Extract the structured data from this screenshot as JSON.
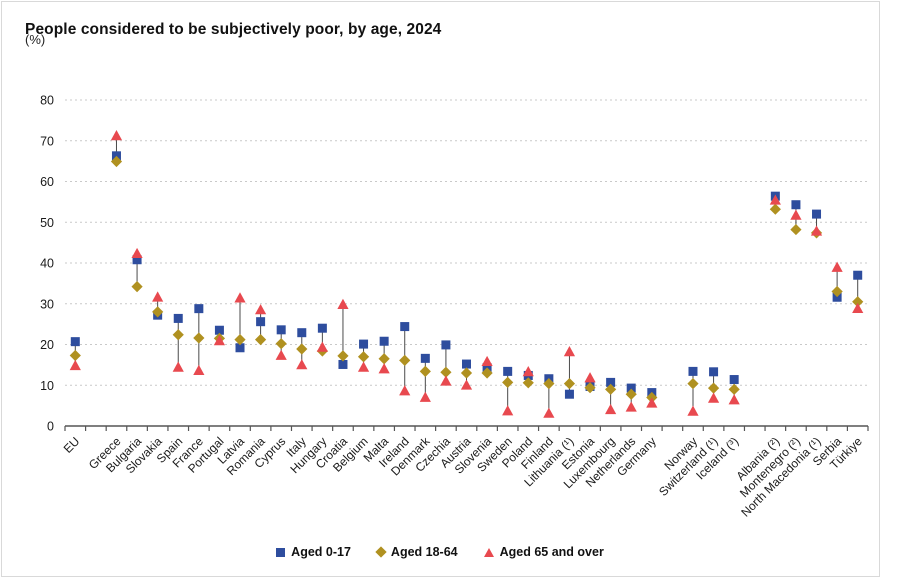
{
  "chart_data": {
    "type": "scatter",
    "title": "People considered to be subjectively poor, by age, 2024",
    "unit_label": "(%)",
    "xlabel": "",
    "ylabel": "%",
    "ylim": [
      0,
      80
    ],
    "yticks": [
      0,
      10,
      20,
      30,
      40,
      50,
      60,
      70,
      80
    ],
    "grid": true,
    "grid_style": "dashed",
    "legend_position": "bottom",
    "marker_link_lines": true,
    "colors": {
      "grid": "#c9c9c9",
      "axis": "#555555",
      "range_line": "#4a4a4a",
      "text": "#1a1a1a"
    },
    "categories": [
      "EU",
      "",
      "Greece",
      "Bulgaria",
      "Slovakia",
      "Spain",
      "France",
      "Portugal",
      "Latvia",
      "Romania",
      "Cyprus",
      "Italy",
      "Hungary",
      "Croatia",
      "Belgium",
      "Malta",
      "Ireland",
      "Denmark",
      "Czechia",
      "Austria",
      "Slovenia",
      "Sweden",
      "Poland",
      "Finland",
      "Lithuania (¹)",
      "Estonia",
      "Luxembourg",
      "Netherlands",
      "Germany",
      "",
      "Norway",
      "Switzerland (¹)",
      "Iceland (³)",
      "",
      "Albania (²)",
      "Montenegro (²)",
      "North Macedonia (¹)",
      "Serbia",
      "Türkiye"
    ],
    "series": [
      {
        "name": "Aged 0-17",
        "marker": "square",
        "color": "#2e4d9e",
        "values": [
          20.7,
          null,
          66.3,
          40.8,
          27.2,
          26.4,
          28.8,
          23.5,
          19.2,
          25.6,
          23.6,
          22.9,
          24.0,
          15.1,
          20.1,
          20.8,
          24.4,
          16.6,
          19.9,
          15.2,
          14.3,
          13.4,
          12.4,
          11.6,
          7.8,
          9.7,
          10.7,
          9.3,
          8.2,
          null,
          13.4,
          13.3,
          11.4,
          null,
          56.4,
          54.3,
          52.0,
          31.6,
          37.0
        ]
      },
      {
        "name": "Aged 18-64",
        "marker": "diamond",
        "color": "#b09120",
        "values": [
          17.3,
          null,
          64.9,
          34.2,
          28.0,
          22.4,
          21.6,
          21.5,
          21.2,
          21.2,
          20.2,
          18.9,
          18.4,
          17.2,
          17.0,
          16.5,
          16.1,
          13.4,
          13.2,
          13.0,
          13.0,
          10.7,
          10.6,
          10.4,
          10.4,
          9.4,
          9.0,
          7.8,
          7.0,
          null,
          10.4,
          9.3,
          9.0,
          null,
          53.2,
          48.2,
          47.4,
          33.0,
          30.5
        ]
      },
      {
        "name": "Aged 65 and over",
        "marker": "triangle",
        "color": "#e8494f",
        "values": [
          14.8,
          null,
          71.2,
          42.3,
          31.6,
          14.4,
          13.6,
          20.9,
          31.4,
          28.5,
          17.3,
          15.0,
          19.3,
          29.8,
          14.4,
          14.0,
          8.6,
          7.0,
          11.0,
          10.0,
          15.8,
          3.7,
          13.3,
          3.1,
          18.2,
          11.8,
          4.0,
          4.6,
          5.6,
          null,
          3.6,
          6.8,
          6.4,
          null,
          55.4,
          51.7,
          47.8,
          38.9,
          28.8
        ]
      }
    ]
  }
}
